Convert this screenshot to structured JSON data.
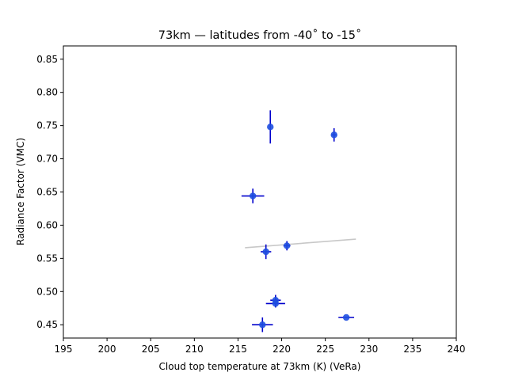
{
  "chart_data": {
    "type": "scatter",
    "title": "73km — latitudes from -40˚ to -15˚",
    "xlabel": "Cloud top temperature at 73km (K) (VeRa)",
    "ylabel": "Radiance Factor (VMC)",
    "xlim": [
      195,
      240
    ],
    "ylim": [
      0.43,
      0.87
    ],
    "xticks": [
      195,
      200,
      205,
      210,
      215,
      220,
      225,
      230,
      235,
      240
    ],
    "yticks": [
      0.45,
      0.5,
      0.55,
      0.6,
      0.65,
      0.7,
      0.75,
      0.8,
      0.85
    ],
    "ytick_labels": [
      "0.45",
      "0.50",
      "0.55",
      "0.60",
      "0.65",
      "0.70",
      "0.75",
      "0.80",
      "0.85"
    ],
    "grid": false,
    "colors": {
      "points": "#1f4fe0",
      "errorbars": "#0000cc",
      "fit_line": "#c8c8c8"
    },
    "points": [
      {
        "x": 218.7,
        "y": 0.748,
        "xerr": 0.0,
        "yerr": 0.025
      },
      {
        "x": 226.0,
        "y": 0.736,
        "xerr": 0.3,
        "yerr": 0.01
      },
      {
        "x": 216.7,
        "y": 0.644,
        "xerr": 1.3,
        "yerr": 0.011
      },
      {
        "x": 220.6,
        "y": 0.569,
        "xerr": 0.4,
        "yerr": 0.007
      },
      {
        "x": 218.2,
        "y": 0.56,
        "xerr": 0.6,
        "yerr": 0.011
      },
      {
        "x": 219.3,
        "y": 0.487,
        "xerr": 0.6,
        "yerr": 0.008
      },
      {
        "x": 219.3,
        "y": 0.482,
        "xerr": 1.1,
        "yerr": 0.006
      },
      {
        "x": 227.4,
        "y": 0.461,
        "xerr": 0.9,
        "yerr": 0.0
      },
      {
        "x": 217.8,
        "y": 0.45,
        "xerr": 1.2,
        "yerr": 0.011
      }
    ],
    "fit_line": {
      "x": [
        215.8,
        228.5
      ],
      "y": [
        0.566,
        0.579
      ]
    }
  }
}
